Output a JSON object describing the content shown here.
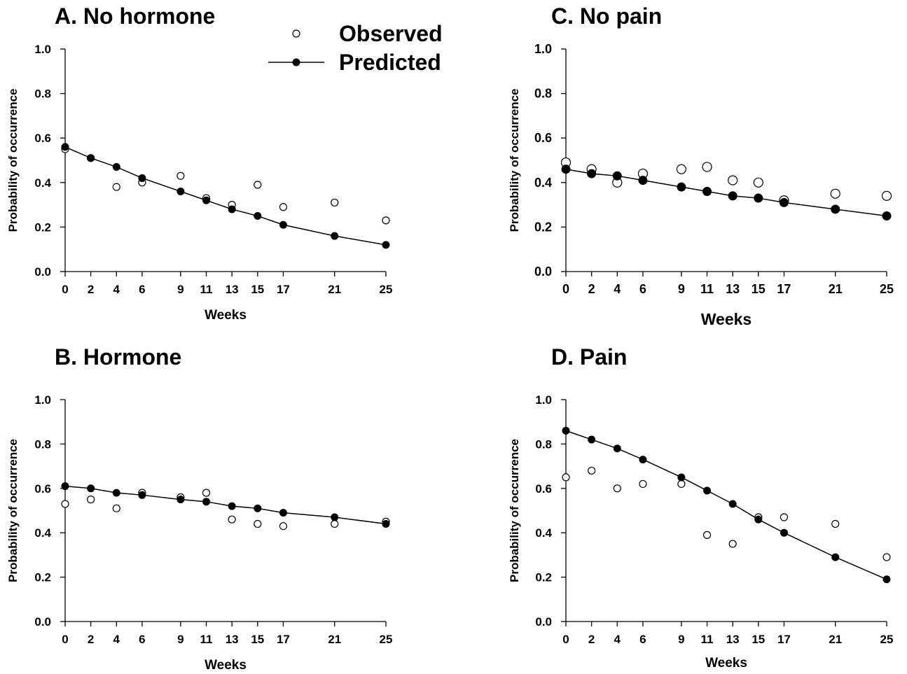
{
  "legend": {
    "observed_label": "Observed",
    "predicted_label": "Predicted"
  },
  "chart_data": [
    {
      "type": "line",
      "title": "A. No hormone",
      "xlabel": "Weeks",
      "ylabel": "Probability of occurrence",
      "x": [
        0,
        2,
        4,
        6,
        9,
        11,
        13,
        15,
        17,
        21,
        25
      ],
      "xticks": [
        "0",
        "2",
        "4",
        "6",
        "9",
        "11",
        "13",
        "15",
        "17",
        "21",
        "25"
      ],
      "yticks": [
        "0.0",
        "0.2",
        "0.4",
        "0.6",
        "0.8",
        "1.0"
      ],
      "ylim": [
        0,
        1
      ],
      "series": [
        {
          "name": "Observed",
          "style": "open-circle",
          "values": [
            0.55,
            0.51,
            0.38,
            0.4,
            0.43,
            0.33,
            0.3,
            0.39,
            0.29,
            0.31,
            0.23
          ]
        },
        {
          "name": "Predicted",
          "style": "filled-circle-line",
          "values": [
            0.56,
            0.51,
            0.47,
            0.42,
            0.36,
            0.32,
            0.28,
            0.25,
            0.21,
            0.16,
            0.12
          ]
        }
      ]
    },
    {
      "type": "line",
      "title": "B. Hormone",
      "xlabel": "Weeks",
      "ylabel": "Probability of occurrence",
      "x": [
        0,
        2,
        4,
        6,
        9,
        11,
        13,
        15,
        17,
        21,
        25
      ],
      "xticks": [
        "0",
        "2",
        "4",
        "6",
        "9",
        "11",
        "13",
        "15",
        "17",
        "21",
        "25"
      ],
      "yticks": [
        "0.0",
        "0.2",
        "0.4",
        "0.6",
        "0.8",
        "1.0"
      ],
      "ylim": [
        0,
        1
      ],
      "series": [
        {
          "name": "Observed",
          "style": "open-circle",
          "values": [
            0.53,
            0.55,
            0.51,
            0.58,
            0.56,
            0.58,
            0.46,
            0.44,
            0.43,
            0.44,
            0.45
          ]
        },
        {
          "name": "Predicted",
          "style": "filled-circle-line",
          "values": [
            0.61,
            0.6,
            0.58,
            0.57,
            0.55,
            0.54,
            0.52,
            0.51,
            0.49,
            0.47,
            0.44
          ]
        }
      ]
    },
    {
      "type": "line",
      "title": "C. No pain",
      "xlabel": "Weeks",
      "ylabel": "Probability of occurrence",
      "x": [
        0,
        2,
        4,
        6,
        9,
        11,
        13,
        15,
        17,
        21,
        25
      ],
      "xticks": [
        "0",
        "2",
        "4",
        "6",
        "9",
        "11",
        "13",
        "15",
        "17",
        "21",
        "25"
      ],
      "yticks": [
        "0.0",
        "0.2",
        "0.4",
        "0.6",
        "0.8",
        "1.0"
      ],
      "ylim": [
        0,
        1
      ],
      "series": [
        {
          "name": "Observed",
          "style": "open-circle",
          "values": [
            0.49,
            0.46,
            0.4,
            0.44,
            0.46,
            0.47,
            0.41,
            0.4,
            0.32,
            0.35,
            0.34
          ]
        },
        {
          "name": "Predicted",
          "style": "filled-circle-line",
          "values": [
            0.46,
            0.44,
            0.43,
            0.41,
            0.38,
            0.36,
            0.34,
            0.33,
            0.31,
            0.28,
            0.25
          ]
        }
      ]
    },
    {
      "type": "line",
      "title": "D. Pain",
      "xlabel": "Weeks",
      "ylabel": "Probability of occurrence",
      "x": [
        0,
        2,
        4,
        6,
        9,
        11,
        13,
        15,
        17,
        21,
        25
      ],
      "xticks": [
        "0",
        "2",
        "4",
        "6",
        "9",
        "11",
        "13",
        "15",
        "17",
        "21",
        "25"
      ],
      "yticks": [
        "0.0",
        "0.2",
        "0.4",
        "0.6",
        "0.8",
        "1.0"
      ],
      "ylim": [
        0,
        1
      ],
      "series": [
        {
          "name": "Observed",
          "style": "open-circle",
          "values": [
            0.65,
            0.68,
            0.6,
            0.62,
            0.62,
            0.39,
            0.35,
            0.47,
            0.47,
            0.44,
            0.29
          ]
        },
        {
          "name": "Predicted",
          "style": "filled-circle-line",
          "values": [
            0.86,
            0.82,
            0.78,
            0.73,
            0.65,
            0.59,
            0.53,
            0.46,
            0.4,
            0.29,
            0.19
          ]
        }
      ]
    }
  ]
}
